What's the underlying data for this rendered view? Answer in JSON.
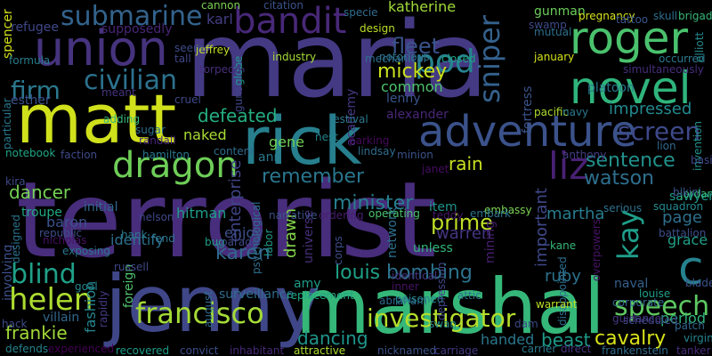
{
  "background_color": "#000000",
  "words": [
    {
      "text": "terrorist",
      "color": "#472d7b"
    },
    {
      "text": "maria",
      "color": "#443983"
    },
    {
      "text": "jenny",
      "color": "#3f4788"
    },
    {
      "text": "marshal",
      "color": "#35b779"
    },
    {
      "text": "matt",
      "color": "#d0e11c"
    },
    {
      "text": "rick",
      "color": "#277f8e"
    },
    {
      "text": "adventure",
      "color": "#3b528b"
    },
    {
      "text": "union",
      "color": "#46337e"
    },
    {
      "text": "roger",
      "color": "#4ac16d"
    },
    {
      "text": "novel",
      "color": "#2fb47c"
    },
    {
      "text": "bandit",
      "color": "#482878"
    },
    {
      "text": "dragon",
      "color": "#6ece58"
    },
    {
      "text": "submarine",
      "color": "#33638d"
    },
    {
      "text": "civilian",
      "color": "#2c728e"
    },
    {
      "text": "francisco",
      "color": "#a5db36"
    },
    {
      "text": "investigator",
      "color": "#b5de2b"
    },
    {
      "text": "helen",
      "color": "#addc30"
    },
    {
      "text": "sniper",
      "color": "#34618d"
    },
    {
      "text": "screen",
      "color": "#3e4989"
    },
    {
      "text": "liz",
      "color": "#482173"
    },
    {
      "text": "pod",
      "color": "#26828e"
    },
    {
      "text": "firm",
      "color": "#2a788e"
    },
    {
      "text": "c",
      "color": "#25838e"
    },
    {
      "text": "kay",
      "color": "#1f9e89"
    },
    {
      "text": "speech",
      "color": "#5ec962"
    },
    {
      "text": "blind",
      "color": "#1fa088"
    },
    {
      "text": "karen",
      "color": "#31688e"
    },
    {
      "text": "defeated",
      "color": "#26ad81"
    },
    {
      "text": "sentence",
      "color": "#21918c"
    },
    {
      "text": "dancer",
      "color": "#75d054"
    },
    {
      "text": "watson",
      "color": "#2e6f8e"
    },
    {
      "text": "mickey",
      "color": "#cae11f"
    },
    {
      "text": "fleet",
      "color": "#3a548c"
    },
    {
      "text": "remember",
      "color": "#2a768e"
    },
    {
      "text": "minister",
      "color": "#277e8e"
    },
    {
      "text": "bombing",
      "color": "#2c738e"
    },
    {
      "text": "louis",
      "color": "#1fa187"
    },
    {
      "text": "cavalry",
      "color": "#d8e219"
    },
    {
      "text": "dancing",
      "color": "#1f958b"
    },
    {
      "text": "frankie",
      "color": "#a2da37"
    },
    {
      "text": "prime",
      "color": "#bddf26"
    },
    {
      "text": "warren",
      "color": "#453581"
    },
    {
      "text": "rain",
      "color": "#c8e020"
    },
    {
      "text": "hitman",
      "color": "#1e9c89"
    },
    {
      "text": "enterprise",
      "color": "#404588"
    },
    {
      "text": "common",
      "color": "#4cc26c"
    },
    {
      "text": "impressed",
      "color": "#23898e"
    },
    {
      "text": "page",
      "color": "#2d708e"
    },
    {
      "text": "period",
      "color": "#2db27d"
    },
    {
      "text": "handed",
      "color": "#2a788e"
    },
    {
      "text": "beast",
      "color": "#1e9b8a"
    },
    {
      "text": "identify",
      "color": "#2d708e"
    },
    {
      "text": "fashion",
      "color": "#25858e"
    },
    {
      "text": "baron",
      "color": "#3b528b"
    },
    {
      "text": "drawn",
      "color": "#84d44b"
    },
    {
      "text": "enjoy",
      "color": "#3d4e8a"
    },
    {
      "text": "gene",
      "color": "#70cf57"
    },
    {
      "text": "ann",
      "color": "#2a788e"
    },
    {
      "text": "naked",
      "color": "#a8db34"
    },
    {
      "text": "important",
      "color": "#3f4889"
    },
    {
      "text": "martha",
      "color": "#287d8e"
    },
    {
      "text": "ruby",
      "color": "#2c738e"
    },
    {
      "text": "grace",
      "color": "#1fa088"
    },
    {
      "text": "karl",
      "color": "#433e85"
    },
    {
      "text": "refugee",
      "color": "#3f4788"
    },
    {
      "text": "supposedly",
      "color": "#482576"
    },
    {
      "text": "katherine",
      "color": "#a0da39"
    },
    {
      "text": "gunman",
      "color": "#6ccd5a"
    },
    {
      "text": "esther",
      "color": "#3b518b"
    },
    {
      "text": "lenny",
      "color": "#39558c"
    },
    {
      "text": "alexander",
      "color": "#482677"
    },
    {
      "text": "academy",
      "color": "#453781"
    },
    {
      "text": "fortress",
      "color": "#3a538b"
    },
    {
      "text": "platoon",
      "color": "#2a778e"
    },
    {
      "text": "mining",
      "color": "#481f70"
    },
    {
      "text": "surveillance",
      "color": "#2f6c8e"
    },
    {
      "text": "unless",
      "color": "#32b67a"
    },
    {
      "text": "network",
      "color": "#2d708e"
    },
    {
      "text": "universe",
      "color": "#472e7c"
    },
    {
      "text": "item",
      "color": "#1f948c"
    },
    {
      "text": "naval",
      "color": "#35608d"
    },
    {
      "text": "sawyer",
      "color": "#1f9a8a"
    },
    {
      "text": "amy",
      "color": "#1e9c89"
    },
    {
      "text": "villain",
      "color": "#31688e"
    },
    {
      "text": "foreign",
      "color": "#4ec36b"
    },
    {
      "text": "initial",
      "color": "#31668e"
    },
    {
      "text": "involving",
      "color": "#3c508b"
    },
    {
      "text": "spencer",
      "color": "#d5e21a"
    },
    {
      "text": "formula",
      "color": "#287c8e"
    },
    {
      "text": "meant",
      "color": "#46337e"
    },
    {
      "text": "tall",
      "color": "#404688"
    },
    {
      "text": "cruel",
      "color": "#3e4989"
    },
    {
      "text": "adding",
      "color": "#35b779"
    },
    {
      "text": "sugar",
      "color": "#2e6e8e"
    },
    {
      "text": "randall",
      "color": "#482878"
    },
    {
      "text": "content",
      "color": "#2f6b8e"
    },
    {
      "text": "hamilton",
      "color": "#2a788e"
    },
    {
      "text": "notebook",
      "color": "#21a685"
    },
    {
      "text": "faction",
      "color": "#3e4a89"
    },
    {
      "text": "troupe",
      "color": "#22a884"
    },
    {
      "text": "nelson",
      "color": "#3f4788"
    },
    {
      "text": "republic",
      "color": "#3d4d8a"
    },
    {
      "text": "nicholas",
      "color": "#471063"
    },
    {
      "text": "hank",
      "color": "#2a788e"
    },
    {
      "text": "designed",
      "color": "#2c738e"
    },
    {
      "text": "fend",
      "color": "#2c728e"
    },
    {
      "text": "bug",
      "color": "#1f9e89"
    },
    {
      "text": "exposing",
      "color": "#2a768e"
    },
    {
      "text": "russell",
      "color": "#3f4889"
    },
    {
      "text": "goal",
      "color": "#23888e"
    },
    {
      "text": "rapidly",
      "color": "#443b84"
    },
    {
      "text": "august",
      "color": "#2f6c8e"
    },
    {
      "text": "convict",
      "color": "#3d4e8a"
    },
    {
      "text": "inhabitant",
      "color": "#482979"
    },
    {
      "text": "recovered",
      "color": "#1e9c89"
    },
    {
      "text": "defends",
      "color": "#25848e"
    },
    {
      "text": "experienced",
      "color": "#440154"
    },
    {
      "text": "attractive",
      "color": "#addc30"
    },
    {
      "text": "nicknamed",
      "color": "#3b528b"
    },
    {
      "text": "carriage",
      "color": "#453882"
    },
    {
      "text": "carrier",
      "color": "#2a788e"
    },
    {
      "text": "direct",
      "color": "#46337e"
    },
    {
      "text": "frankenstein",
      "color": "#2f6c8e"
    },
    {
      "text": "tanker",
      "color": "#472c7a"
    },
    {
      "text": "virgin",
      "color": "#25848e"
    },
    {
      "text": "patch",
      "color": "#32658e"
    },
    {
      "text": "hack",
      "color": "#3e4c8a"
    },
    {
      "text": "cannon",
      "color": "#7ad151"
    },
    {
      "text": "citation",
      "color": "#3b528b"
    },
    {
      "text": "specie",
      "color": "#2f6c8e"
    },
    {
      "text": "jeffrey",
      "color": "#c2df23"
    },
    {
      "text": "design",
      "color": "#bade28"
    },
    {
      "text": "mechanical",
      "color": "#2e6f8e"
    },
    {
      "text": "closed",
      "color": "#20a386"
    },
    {
      "text": "seem",
      "color": "#3d4d8a"
    },
    {
      "text": "industry",
      "color": "#a5db36"
    },
    {
      "text": "notorious",
      "color": "#2c728e"
    },
    {
      "text": "january",
      "color": "#d2e21b"
    },
    {
      "text": "gunslinger",
      "color": "#3f4889"
    },
    {
      "text": "globe",
      "color": "#1f978b"
    },
    {
      "text": "festival",
      "color": "#2a788e"
    },
    {
      "text": "nest",
      "color": "#25838e"
    },
    {
      "text": "parking",
      "color": "#46085c"
    },
    {
      "text": "lindsay",
      "color": "#2f6c8e"
    },
    {
      "text": "minion",
      "color": "#3b528b"
    },
    {
      "text": "janet",
      "color": "#470d60"
    },
    {
      "text": "teddy",
      "color": "#481769"
    },
    {
      "text": "serious",
      "color": "#2c728e"
    },
    {
      "text": "squadron",
      "color": "#23898e"
    },
    {
      "text": "jordan",
      "color": "#35b779"
    },
    {
      "text": "battalion",
      "color": "#3c4f8a"
    },
    {
      "text": "embassy",
      "color": "#7ad151"
    },
    {
      "text": "embark",
      "color": "#2c728e"
    },
    {
      "text": "operating",
      "color": "#4ac16d"
    },
    {
      "text": "ordering",
      "color": "#481d6f"
    },
    {
      "text": "narrative",
      "color": "#3b528b"
    },
    {
      "text": "parade",
      "color": "#3e4989"
    },
    {
      "text": "labor",
      "color": "#1e9b8a"
    },
    {
      "text": "psychological",
      "color": "#2e6f8e"
    },
    {
      "text": "corps",
      "color": "#3d4e8a"
    },
    {
      "text": "inner",
      "color": "#471365"
    },
    {
      "text": "identical",
      "color": "#46337e"
    },
    {
      "text": "replacement",
      "color": "#21a685"
    },
    {
      "text": "abraham",
      "color": "#2f6b8e"
    },
    {
      "text": "poisoned",
      "color": "#25848e"
    },
    {
      "text": "depression",
      "color": "#3f4788"
    },
    {
      "text": "swan",
      "color": "#238a8d"
    },
    {
      "text": "attic",
      "color": "#2c728e"
    },
    {
      "text": "dam",
      "color": "#3e4a89"
    },
    {
      "text": "disappointed",
      "color": "#2e6e8e"
    },
    {
      "text": "warrant",
      "color": "#bade28"
    },
    {
      "text": "corporate",
      "color": "#31668e"
    },
    {
      "text": "scheduled",
      "color": "#3f4889"
    },
    {
      "text": "guidance",
      "color": "#453882"
    },
    {
      "text": "louise",
      "color": "#1fa088"
    },
    {
      "text": "blade",
      "color": "#3b528b"
    },
    {
      "text": "overpowers",
      "color": "#471365"
    },
    {
      "text": "kane",
      "color": "#35b779"
    },
    {
      "text": "pacific",
      "color": "#addc30"
    },
    {
      "text": "navy",
      "color": "#2a788e"
    },
    {
      "text": "lion",
      "color": "#31688e"
    },
    {
      "text": "pregnancy",
      "color": "#d5e21a"
    },
    {
      "text": "skull",
      "color": "#2e6f8e"
    },
    {
      "text": "brigade",
      "color": "#37b878"
    },
    {
      "text": "tattoo",
      "color": "#39558c"
    },
    {
      "text": "occurred",
      "color": "#2a788e"
    },
    {
      "text": "simultaneously",
      "color": "#472e7c"
    },
    {
      "text": "invention",
      "color": "#21918c"
    },
    {
      "text": "elliott",
      "color": "#23898e"
    },
    {
      "text": "mutual",
      "color": "#2d708e"
    },
    {
      "text": "swamp",
      "color": "#3e4a89"
    },
    {
      "text": "basic",
      "color": "#3f4788"
    },
    {
      "text": "bikini",
      "color": "#3b528b"
    },
    {
      "text": "particular",
      "color": "#2a788e"
    },
    {
      "text": "anthony",
      "color": "#433e85"
    },
    {
      "text": "kira",
      "color": "#3e4989"
    },
    {
      "text": "torpedo",
      "color": "#472e7c"
    }
  ]
}
